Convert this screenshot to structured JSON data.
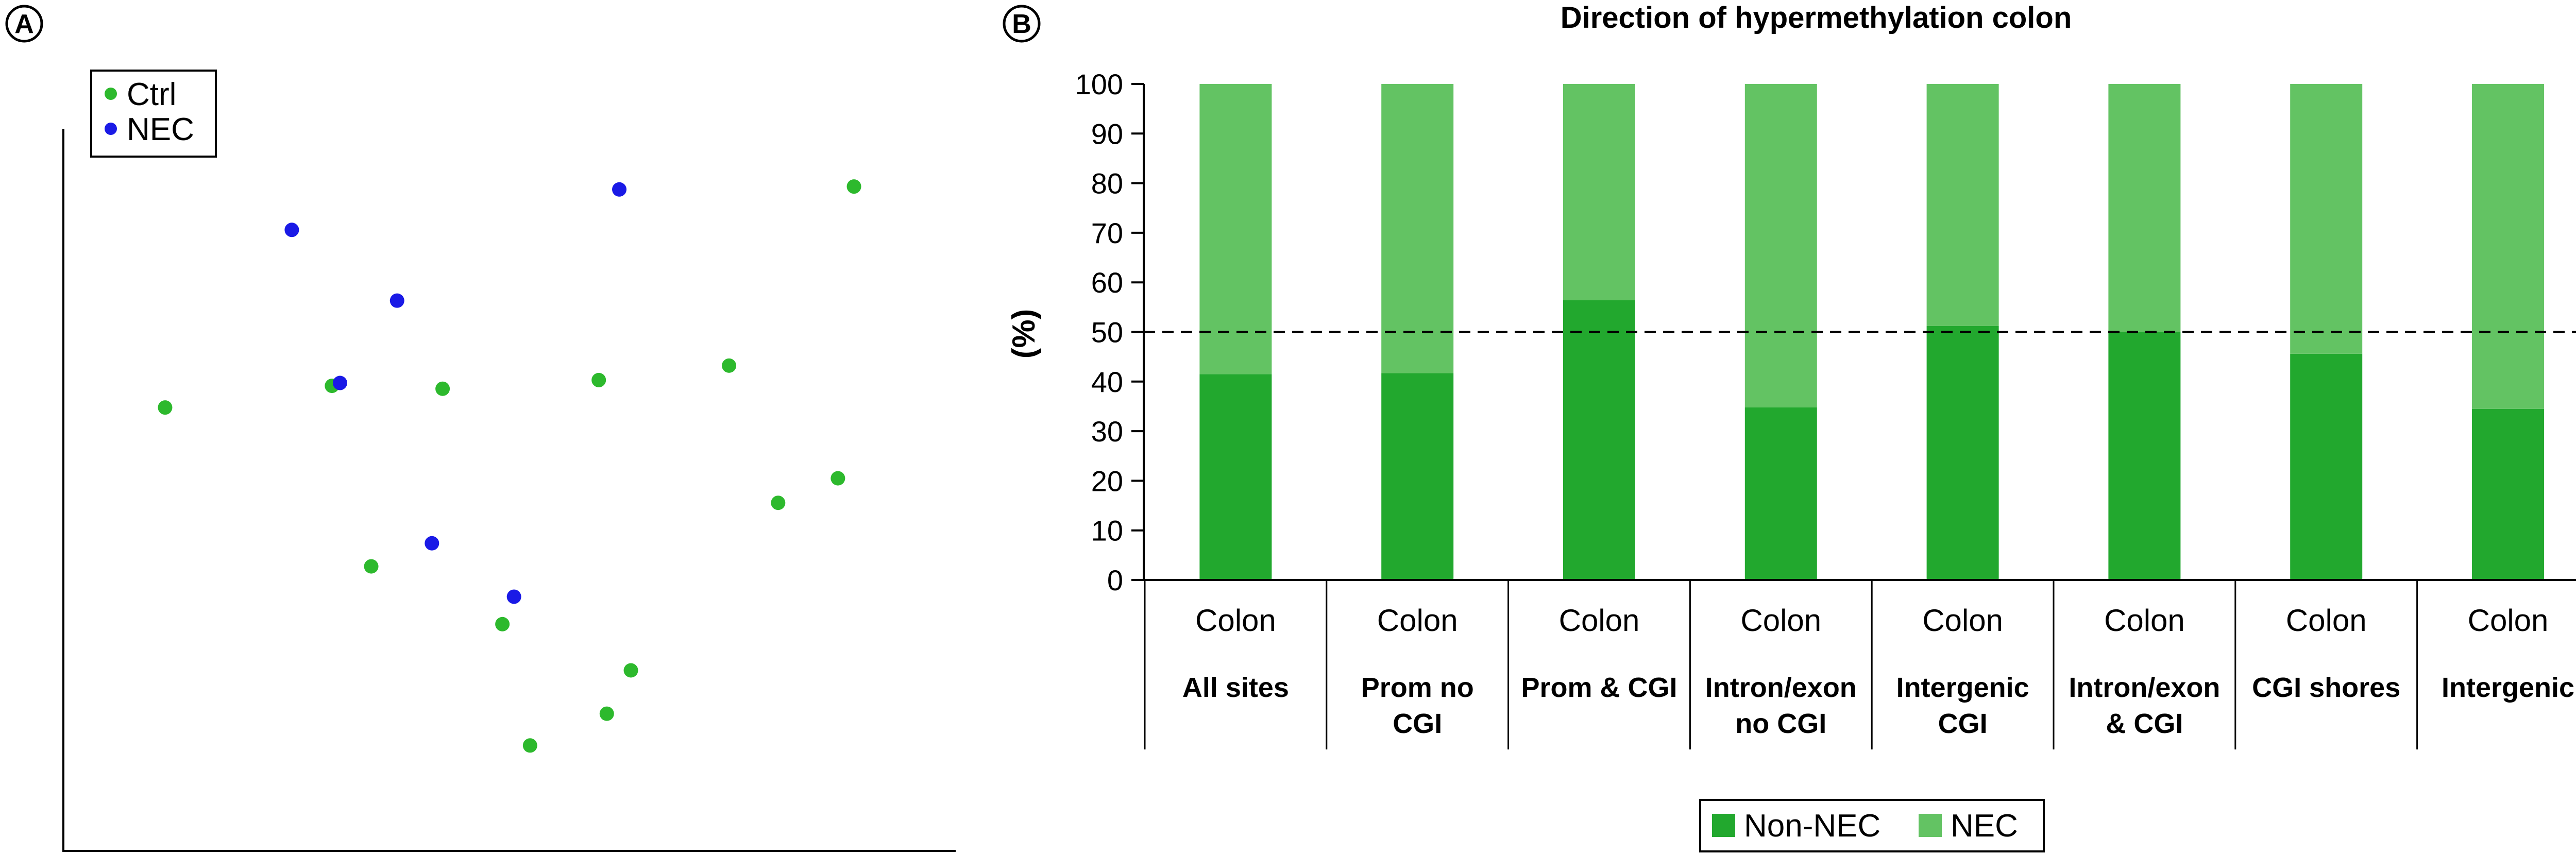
{
  "panel_a": {
    "letter": "A",
    "legend": [
      {
        "label": "Ctrl",
        "color": "#2db92d"
      },
      {
        "label": "NEC",
        "color": "#1a1ae6"
      }
    ]
  },
  "panel_b": {
    "letter": "B",
    "legend": [
      {
        "label": "Non-NEC",
        "color": "#22a82e"
      },
      {
        "label": "NEC",
        "color": "#63c363"
      }
    ]
  },
  "chart_data": [
    {
      "type": "scatter",
      "grid": false,
      "xlim": [
        0,
        100
      ],
      "ylim": [
        0,
        100
      ],
      "series": [
        {
          "name": "Ctrl",
          "color": "#2db92d",
          "points": [
            {
              "x": 11.4,
              "y": 61.4
            },
            {
              "x": 30.1,
              "y": 64.4
            },
            {
              "x": 42.5,
              "y": 64.0
            },
            {
              "x": 60.0,
              "y": 65.2
            },
            {
              "x": 74.6,
              "y": 67.2
            },
            {
              "x": 88.6,
              "y": 92.0
            },
            {
              "x": 86.8,
              "y": 51.6
            },
            {
              "x": 80.1,
              "y": 48.2
            },
            {
              "x": 34.5,
              "y": 39.4
            },
            {
              "x": 49.2,
              "y": 31.4
            },
            {
              "x": 63.6,
              "y": 25.0
            },
            {
              "x": 60.9,
              "y": 19.0
            },
            {
              "x": 52.3,
              "y": 14.6
            }
          ]
        },
        {
          "name": "NEC",
          "color": "#1a1ae6",
          "points": [
            {
              "x": 62.3,
              "y": 91.6
            },
            {
              "x": 25.6,
              "y": 86.0
            },
            {
              "x": 37.4,
              "y": 76.2
            },
            {
              "x": 31.0,
              "y": 64.8
            },
            {
              "x": 41.3,
              "y": 42.6
            },
            {
              "x": 50.5,
              "y": 35.2
            }
          ]
        }
      ]
    },
    {
      "type": "bar",
      "stacked": true,
      "title": "Direction of hypermethylation colon",
      "ylabel": "(%)",
      "ylim": [
        0,
        100
      ],
      "yticks": [
        0,
        10,
        20,
        30,
        40,
        50,
        60,
        70,
        80,
        90,
        100
      ],
      "reference_line": 50,
      "grid": false,
      "legend_position": "bottom-center",
      "categories": [
        "Colon",
        "Colon",
        "Colon",
        "Colon",
        "Colon",
        "Colon",
        "Colon",
        "Colon"
      ],
      "subcategories": [
        [
          "All sites"
        ],
        [
          "Prom no",
          "CGI"
        ],
        [
          "Prom & CGI"
        ],
        [
          "Intron/exon",
          "no CGI"
        ],
        [
          "Intergenic",
          "CGI"
        ],
        [
          "Intron/exon",
          "& CGI"
        ],
        [
          "CGI shores"
        ],
        [
          "Intergenic"
        ]
      ],
      "series": [
        {
          "name": "Non-NEC",
          "color": "#22a82e",
          "values": [
            41.5,
            41.7,
            56.4,
            34.8,
            51.2,
            50.0,
            45.6,
            34.5
          ]
        },
        {
          "name": "NEC",
          "color": "#63c363",
          "values": [
            58.5,
            58.3,
            43.6,
            65.2,
            48.8,
            50.0,
            54.4,
            65.5
          ]
        }
      ]
    }
  ]
}
